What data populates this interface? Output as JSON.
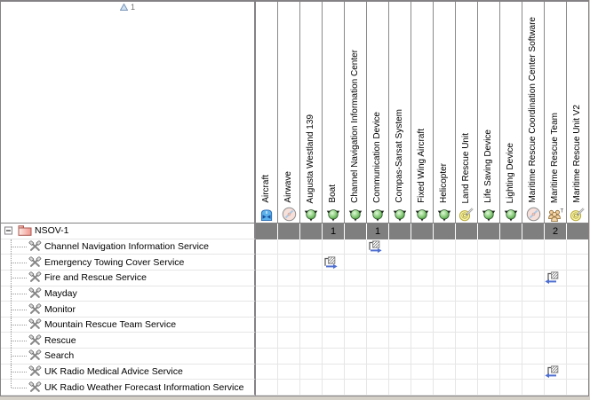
{
  "corner": {
    "sort_order": "1",
    "sort_icon": "sort-ascending-icon"
  },
  "columns": [
    {
      "label": "Aircraft",
      "icon": "aircraft-icon"
    },
    {
      "label": "Airwave",
      "icon": "disc-icon"
    },
    {
      "label": "Augusta Westland 139",
      "icon": "node-icon"
    },
    {
      "label": "Boat",
      "icon": "node-icon"
    },
    {
      "label": "Channel Navigation Information Center",
      "icon": "node-icon"
    },
    {
      "label": "Communication Device",
      "icon": "node-icon"
    },
    {
      "label": "Compas-Sarsat System",
      "icon": "node-icon"
    },
    {
      "label": "Fixed Wing Aircraft",
      "icon": "node-icon"
    },
    {
      "label": "Helicopter",
      "icon": "node-icon"
    },
    {
      "label": "Land Rescue Unit",
      "icon": "component-icon"
    },
    {
      "label": "Life Saving Device",
      "icon": "node-icon"
    },
    {
      "label": "Lighting Device",
      "icon": "node-icon"
    },
    {
      "label": "Maritime Rescue Coordination Center Software",
      "icon": "disc-icon"
    },
    {
      "label": "Maritime Rescue Team",
      "icon": "team-icon"
    },
    {
      "label": "Maritime Rescue Unit V2",
      "icon": "component-icon"
    }
  ],
  "root_row": {
    "label": "NSOV-1",
    "icon": "package-icon",
    "expander": "minus",
    "counts": [
      "",
      "",
      "",
      "1",
      "",
      "1",
      "",
      "",
      "",
      "",
      "",
      "",
      "",
      "2",
      ""
    ]
  },
  "rows": [
    {
      "label": "Channel Navigation Information Service",
      "icon": "service-icon",
      "cells": {
        "5": "rel-right-icon"
      }
    },
    {
      "label": "Emergency Towing Cover Service",
      "icon": "service-icon",
      "cells": {
        "3": "rel-right-icon"
      }
    },
    {
      "label": "Fire and Rescue Service",
      "icon": "service-icon",
      "cells": {
        "13": "rel-left-icon"
      }
    },
    {
      "label": "Mayday",
      "icon": "service-icon",
      "cells": {}
    },
    {
      "label": "Monitor",
      "icon": "service-icon",
      "cells": {}
    },
    {
      "label": "Mountain Rescue Team Service",
      "icon": "service-icon",
      "cells": {}
    },
    {
      "label": "Rescue",
      "icon": "service-icon",
      "cells": {}
    },
    {
      "label": "Search",
      "icon": "service-icon",
      "cells": {}
    },
    {
      "label": "UK Radio Medical Advice Service",
      "icon": "service-icon",
      "cells": {
        "13": "rel-left-icon"
      }
    },
    {
      "label": "UK Radio Weather Forecast Information Service",
      "icon": "service-icon",
      "cells": {}
    }
  ],
  "colors": {
    "summary_row_bg": "#7f7f7f",
    "grid_line": "#e6e6e6",
    "header_line": "#8a8a8a",
    "frame": "#848284",
    "relation_arrow": "#4f6fd0",
    "node_green": "#8ed080",
    "package_pink": "#f2948c"
  }
}
